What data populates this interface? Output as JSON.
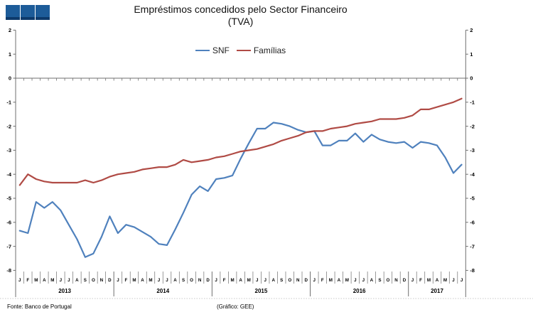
{
  "title": {
    "line1": "Empréstimos concedidos pelo Sector Financeiro",
    "line2": "(TVA)"
  },
  "legend": [
    {
      "label": "SNF",
      "color": "#4F81BD"
    },
    {
      "label": "Famílias",
      "color": "#B04B45"
    }
  ],
  "footer": {
    "source": "Fonte: Banco de Portugal",
    "credit": "(Gráfico: GEE)"
  },
  "colors": {
    "axis": "#6f6f6f",
    "tick_text": "#000000",
    "border_dotted": "#c8c8c8",
    "logo_blue": "#1d5c99",
    "logo_dark": "#0d3a6b"
  },
  "chart_data": {
    "type": "line",
    "title": "Empréstimos concedidos pelo Sector Financeiro (TVA)",
    "xlabel": "",
    "ylabel": "",
    "ylim": [
      -8,
      2
    ],
    "grid": false,
    "legend_position": "top-center",
    "y_ticks": [
      2,
      1,
      0,
      -1,
      -2,
      -3,
      -4,
      -5,
      -6,
      -7,
      -8
    ],
    "dual_y_axis": true,
    "x_axis": {
      "years": [
        {
          "label": "2013",
          "months": [
            "J",
            "F",
            "M",
            "A",
            "M",
            "J",
            "J",
            "A",
            "S",
            "O",
            "N",
            "D"
          ]
        },
        {
          "label": "2014",
          "months": [
            "J",
            "F",
            "M",
            "A",
            "M",
            "J",
            "J",
            "A",
            "S",
            "O",
            "N",
            "D"
          ]
        },
        {
          "label": "2015",
          "months": [
            "J",
            "F",
            "M",
            "A",
            "M",
            "J",
            "J",
            "A",
            "S",
            "O",
            "N",
            "D"
          ]
        },
        {
          "label": "2016",
          "months": [
            "J",
            "F",
            "M",
            "A",
            "M",
            "J",
            "J",
            "A",
            "S",
            "O",
            "N",
            "D"
          ]
        },
        {
          "label": "2017",
          "months": [
            "J",
            "F",
            "M",
            "A",
            "M",
            "J",
            "J"
          ]
        }
      ]
    },
    "series": [
      {
        "name": "SNF",
        "color": "#4F81BD",
        "values": [
          -6.35,
          -6.45,
          -5.15,
          -5.4,
          -5.15,
          -5.5,
          -6.1,
          -6.7,
          -7.45,
          -7.3,
          -6.6,
          -5.75,
          -6.45,
          -6.1,
          -6.2,
          -6.4,
          -6.6,
          -6.9,
          -6.95,
          -6.3,
          -5.6,
          -4.85,
          -4.5,
          -4.7,
          -4.2,
          -4.15,
          -4.05,
          -3.35,
          -2.7,
          -2.1,
          -2.1,
          -1.85,
          -1.9,
          -2.0,
          -2.15,
          -2.25,
          -2.2,
          -2.8,
          -2.8,
          -2.6,
          -2.6,
          -2.3,
          -2.65,
          -2.35,
          -2.55,
          -2.65,
          -2.7,
          -2.65,
          -2.9,
          -2.65,
          -2.7,
          -2.8,
          -3.3,
          -3.95,
          -3.6
        ]
      },
      {
        "name": "Famílias",
        "color": "#B04B45",
        "values": [
          -4.45,
          -4.0,
          -4.2,
          -4.3,
          -4.35,
          -4.35,
          -4.35,
          -4.35,
          -4.25,
          -4.35,
          -4.25,
          -4.1,
          -4.0,
          -3.95,
          -3.9,
          -3.8,
          -3.75,
          -3.7,
          -3.7,
          -3.6,
          -3.4,
          -3.5,
          -3.45,
          -3.4,
          -3.3,
          -3.25,
          -3.15,
          -3.05,
          -3.0,
          -2.95,
          -2.85,
          -2.75,
          -2.6,
          -2.5,
          -2.4,
          -2.25,
          -2.2,
          -2.2,
          -2.1,
          -2.05,
          -2.0,
          -1.9,
          -1.85,
          -1.8,
          -1.7,
          -1.7,
          -1.7,
          -1.65,
          -1.55,
          -1.3,
          -1.3,
          -1.2,
          -1.1,
          -1.0,
          -0.85
        ]
      }
    ]
  }
}
